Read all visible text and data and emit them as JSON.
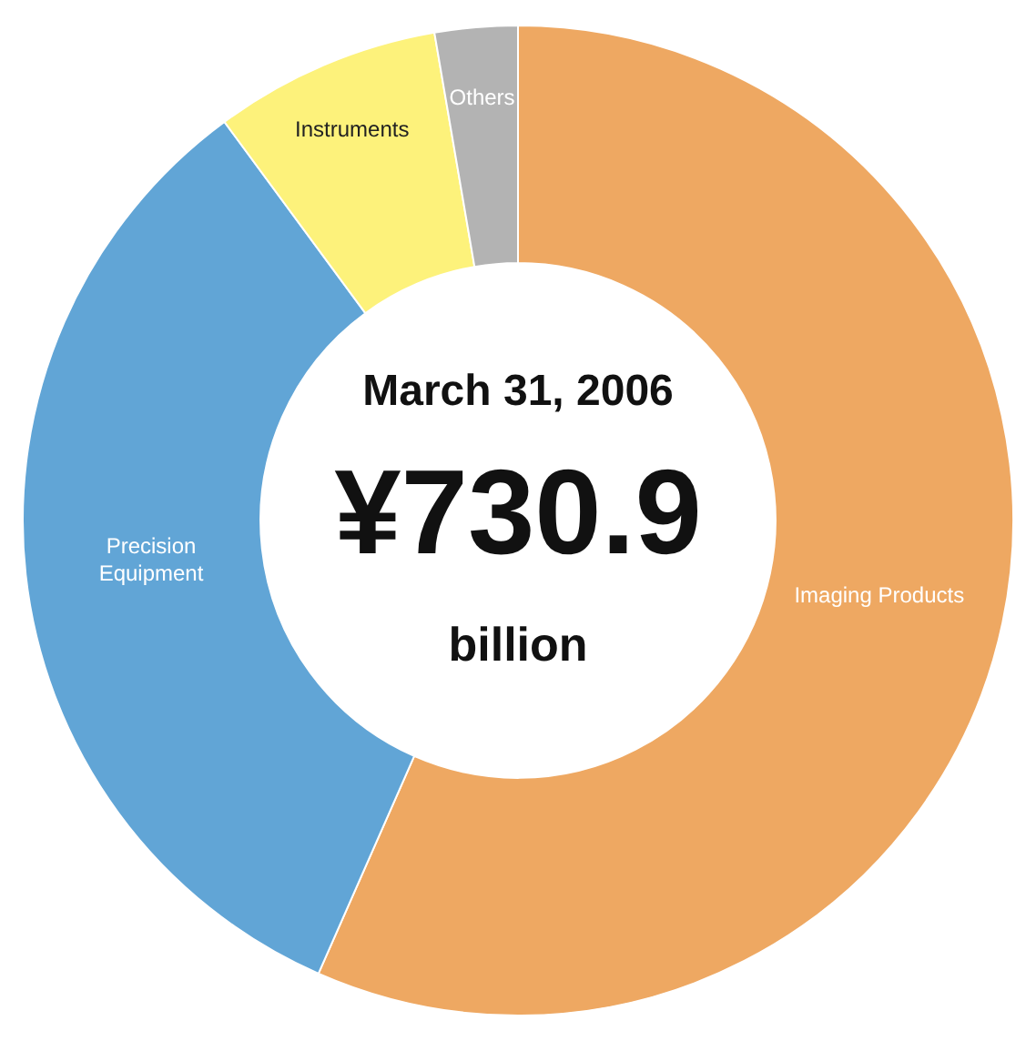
{
  "chart_data": {
    "type": "donut",
    "categories": [
      "Imaging Products",
      "Precision Equipment",
      "Instruments",
      "Others"
    ],
    "values": [
      56.6,
      33.3,
      7.4,
      2.7
    ],
    "colors": [
      "#eea862",
      "#61a5d6",
      "#fdf27b",
      "#b3b3b3"
    ],
    "annotations": [
      "March 31, 2006",
      "¥730.9",
      "billion"
    ],
    "legend": false
  }
}
